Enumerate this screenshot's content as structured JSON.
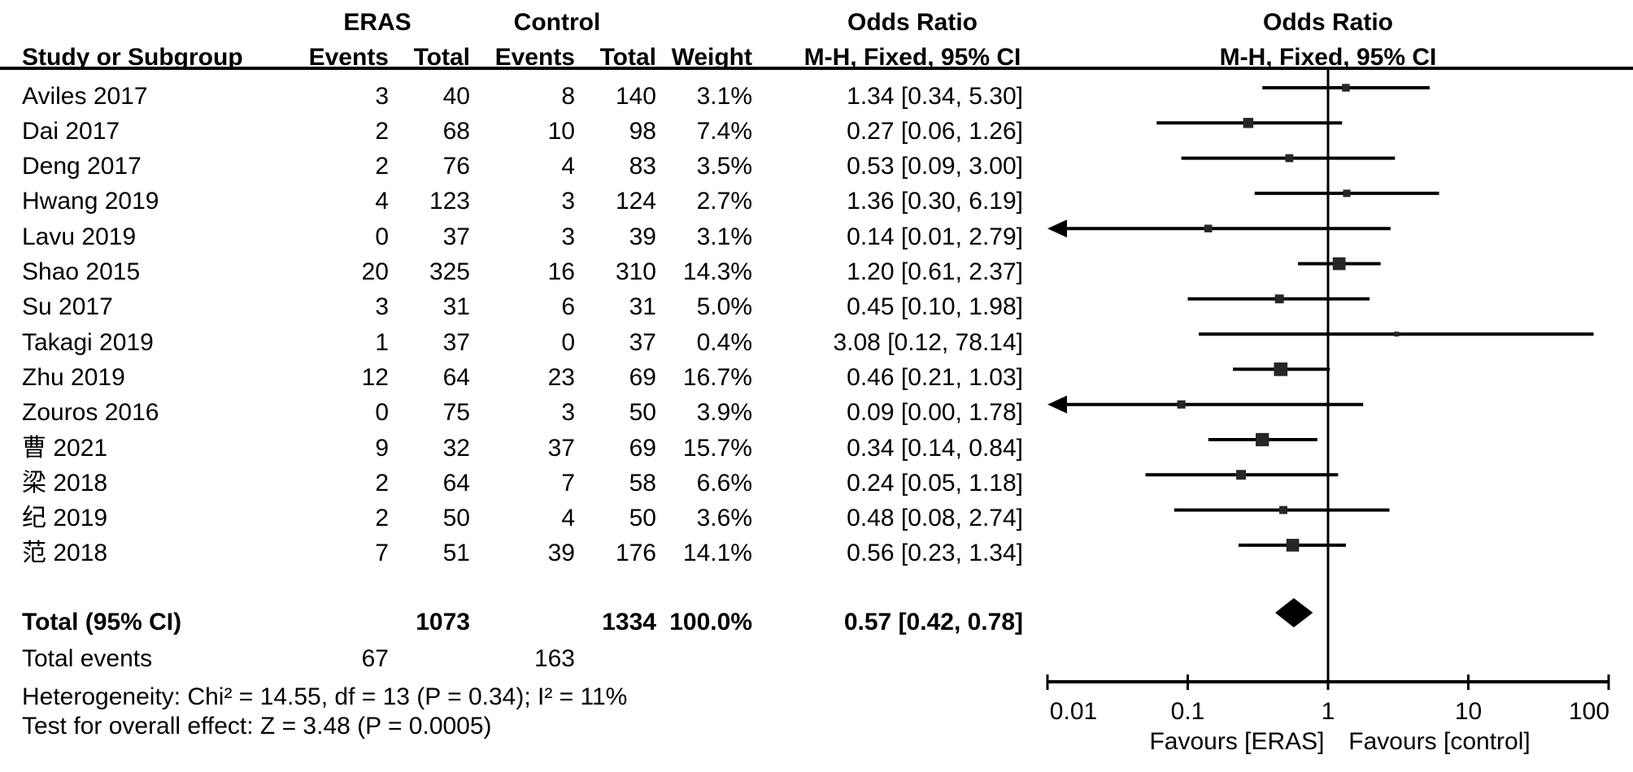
{
  "header": {
    "group_eras": "ERAS",
    "group_control": "Control",
    "or_text_title": "Odds Ratio",
    "or_text_sub": "M-H, Fixed, 95% CI",
    "or_plot_title": "Odds Ratio",
    "or_plot_sub": "M-H, Fixed, 95% CI",
    "col_study": "Study or Subgroup",
    "col_events": "Events",
    "col_total": "Total",
    "col_weight": "Weight"
  },
  "colors": {
    "ink": "#000000",
    "marker": "#262626"
  },
  "chart_data": {
    "type": "forest",
    "effect_measure": "Odds Ratio, Mantel-Haenszel, Fixed, 95% CI",
    "x_scale": "log10",
    "x_ticks": [
      0.01,
      0.1,
      1,
      10,
      100
    ],
    "x_tick_labels": [
      "0.01",
      "0.1",
      "1",
      "10",
      "100"
    ],
    "favours_left": "Favours [ERAS]",
    "favours_right": "Favours [control]",
    "studies": [
      {
        "name": "Aviles 2017",
        "eras_events": "3",
        "eras_total": "40",
        "control_events": "8",
        "control_total": "140",
        "weight": "3.1%",
        "weight_pct": 3.1,
        "or": 1.34,
        "ci_low": 0.34,
        "ci_high": 5.3,
        "or_label": "1.34 [0.34, 5.30]"
      },
      {
        "name": "Dai 2017",
        "eras_events": "2",
        "eras_total": "68",
        "control_events": "10",
        "control_total": "98",
        "weight": "7.4%",
        "weight_pct": 7.4,
        "or": 0.27,
        "ci_low": 0.06,
        "ci_high": 1.26,
        "or_label": "0.27 [0.06, 1.26]"
      },
      {
        "name": "Deng 2017",
        "eras_events": "2",
        "eras_total": "76",
        "control_events": "4",
        "control_total": "83",
        "weight": "3.5%",
        "weight_pct": 3.5,
        "or": 0.53,
        "ci_low": 0.09,
        "ci_high": 3.0,
        "or_label": "0.53 [0.09, 3.00]"
      },
      {
        "name": "Hwang 2019",
        "eras_events": "4",
        "eras_total": "123",
        "control_events": "3",
        "control_total": "124",
        "weight": "2.7%",
        "weight_pct": 2.7,
        "or": 1.36,
        "ci_low": 0.3,
        "ci_high": 6.19,
        "or_label": "1.36 [0.30, 6.19]"
      },
      {
        "name": "Lavu 2019",
        "eras_events": "0",
        "eras_total": "37",
        "control_events": "3",
        "control_total": "39",
        "weight": "3.1%",
        "weight_pct": 3.1,
        "or": 0.14,
        "ci_low": 0.01,
        "ci_high": 2.79,
        "or_label": "0.14 [0.01, 2.79]"
      },
      {
        "name": "Shao 2015",
        "eras_events": "20",
        "eras_total": "325",
        "control_events": "16",
        "control_total": "310",
        "weight": "14.3%",
        "weight_pct": 14.3,
        "or": 1.2,
        "ci_low": 0.61,
        "ci_high": 2.37,
        "or_label": "1.20 [0.61, 2.37]"
      },
      {
        "name": "Su 2017",
        "eras_events": "3",
        "eras_total": "31",
        "control_events": "6",
        "control_total": "31",
        "weight": "5.0%",
        "weight_pct": 5.0,
        "or": 0.45,
        "ci_low": 0.1,
        "ci_high": 1.98,
        "or_label": "0.45 [0.10, 1.98]"
      },
      {
        "name": "Takagi 2019",
        "eras_events": "1",
        "eras_total": "37",
        "control_events": "0",
        "control_total": "37",
        "weight": "0.4%",
        "weight_pct": 0.4,
        "or": 3.08,
        "ci_low": 0.12,
        "ci_high": 78.14,
        "or_label": "3.08 [0.12, 78.14]"
      },
      {
        "name": "Zhu 2019",
        "eras_events": "12",
        "eras_total": "64",
        "control_events": "23",
        "control_total": "69",
        "weight": "16.7%",
        "weight_pct": 16.7,
        "or": 0.46,
        "ci_low": 0.21,
        "ci_high": 1.03,
        "or_label": "0.46 [0.21, 1.03]"
      },
      {
        "name": "Zouros 2016",
        "eras_events": "0",
        "eras_total": "75",
        "control_events": "3",
        "control_total": "50",
        "weight": "3.9%",
        "weight_pct": 3.9,
        "or": 0.09,
        "ci_low": 0.0,
        "ci_high": 1.78,
        "or_label": "0.09 [0.00, 1.78]"
      },
      {
        "name": "曹 2021",
        "eras_events": "9",
        "eras_total": "32",
        "control_events": "37",
        "control_total": "69",
        "weight": "15.7%",
        "weight_pct": 15.7,
        "or": 0.34,
        "ci_low": 0.14,
        "ci_high": 0.84,
        "or_label": "0.34 [0.14, 0.84]"
      },
      {
        "name": "梁 2018",
        "eras_events": "2",
        "eras_total": "64",
        "control_events": "7",
        "control_total": "58",
        "weight": "6.6%",
        "weight_pct": 6.6,
        "or": 0.24,
        "ci_low": 0.05,
        "ci_high": 1.18,
        "or_label": "0.24 [0.05, 1.18]"
      },
      {
        "name": "纪 2019",
        "eras_events": "2",
        "eras_total": "50",
        "control_events": "4",
        "control_total": "50",
        "weight": "3.6%",
        "weight_pct": 3.6,
        "or": 0.48,
        "ci_low": 0.08,
        "ci_high": 2.74,
        "or_label": "0.48 [0.08, 2.74]"
      },
      {
        "name": "范 2018",
        "eras_events": "7",
        "eras_total": "51",
        "control_events": "39",
        "control_total": "176",
        "weight": "14.1%",
        "weight_pct": 14.1,
        "or": 0.56,
        "ci_low": 0.23,
        "ci_high": 1.34,
        "or_label": "0.56 [0.23, 1.34]"
      }
    ],
    "total": {
      "label": "Total (95% CI)",
      "eras_total": "1073",
      "control_total": "1334",
      "weight": "100.0%",
      "or": 0.57,
      "ci_low": 0.42,
      "ci_high": 0.78,
      "or_label": "0.57 [0.42, 0.78]"
    },
    "total_events": {
      "label": "Total events",
      "eras": "67",
      "control": "163"
    },
    "heterogeneity": "Heterogeneity: Chi² = 14.55, df = 13 (P = 0.34); I² = 11%",
    "overall_effect": "Test for overall effect: Z = 3.48 (P = 0.0005)"
  }
}
